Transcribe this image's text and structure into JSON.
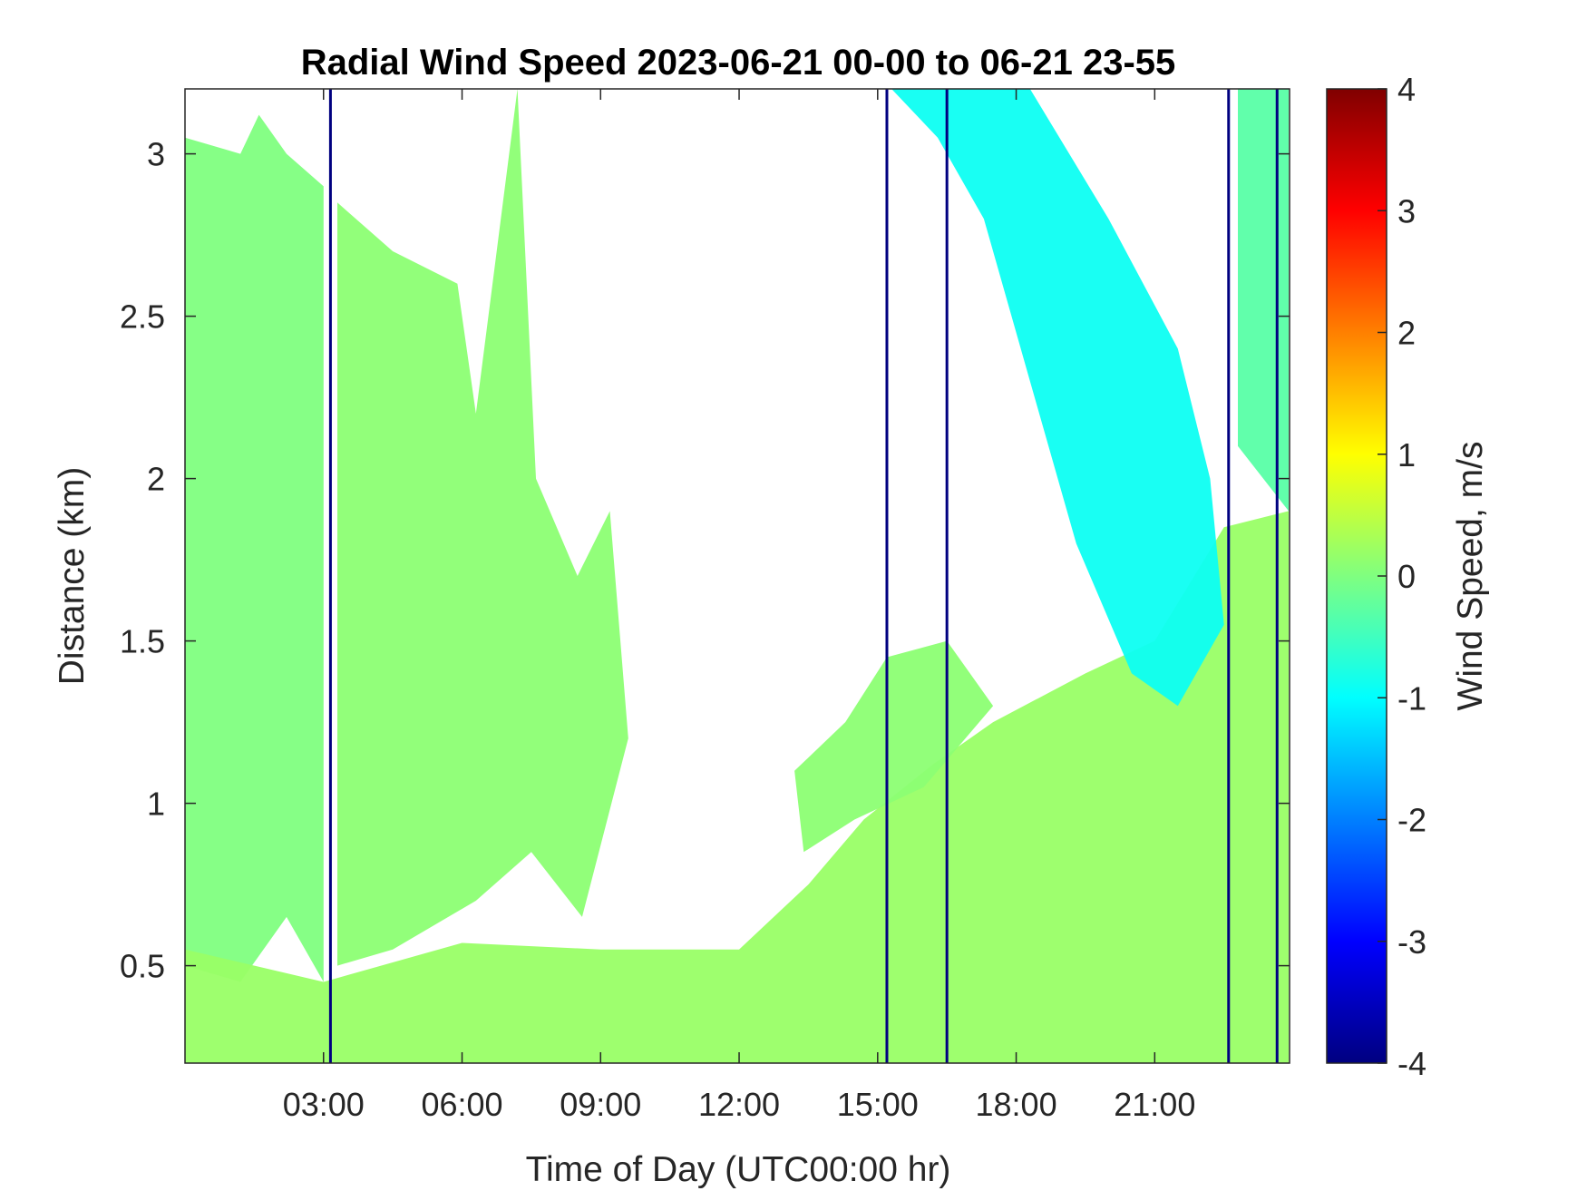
{
  "chart_data": {
    "type": "heatmap",
    "title": "Radial Wind Speed 2023-06-21 00-00 to 06-21 23-55",
    "xlabel": "Time of Day (UTC00:00 hr)",
    "ylabel": "Distance (km)",
    "colorbar_label": "Wind Speed, m/s",
    "colormap": "jet",
    "x_range_hours": [
      0.0,
      23.92
    ],
    "x_ticks": [
      {
        "value": 3,
        "label": "03:00"
      },
      {
        "value": 6,
        "label": "06:00"
      },
      {
        "value": 9,
        "label": "09:00"
      },
      {
        "value": 12,
        "label": "12:00"
      },
      {
        "value": 15,
        "label": "15:00"
      },
      {
        "value": 18,
        "label": "18:00"
      },
      {
        "value": 21,
        "label": "21:00"
      }
    ],
    "ylim": [
      0.2,
      3.2
    ],
    "y_ticks": [
      {
        "value": 0.5,
        "label": "0.5"
      },
      {
        "value": 1,
        "label": "1"
      },
      {
        "value": 1.5,
        "label": "1.5"
      },
      {
        "value": 2,
        "label": "2"
      },
      {
        "value": 2.5,
        "label": "2.5"
      },
      {
        "value": 3,
        "label": "3"
      }
    ],
    "clim": [
      -4,
      4
    ],
    "colorbar_ticks": [
      {
        "value": 4,
        "label": "4"
      },
      {
        "value": 3,
        "label": "3"
      },
      {
        "value": 2,
        "label": "2"
      },
      {
        "value": 1,
        "label": "1"
      },
      {
        "value": 0,
        "label": "0"
      },
      {
        "value": -1,
        "label": "-1"
      },
      {
        "value": -2,
        "label": "-2"
      },
      {
        "value": -3,
        "label": "-3"
      },
      {
        "value": -4,
        "label": "-4"
      }
    ],
    "regions": [
      {
        "id": "night-layer",
        "value": 0.0,
        "points": [
          [
            0,
            3.05
          ],
          [
            1.2,
            3.0
          ],
          [
            1.6,
            3.12
          ],
          [
            2.2,
            3.0
          ],
          [
            3.0,
            2.9
          ],
          [
            3.0,
            0.45
          ],
          [
            2.2,
            0.65
          ],
          [
            1.2,
            0.45
          ],
          [
            0,
            0.5
          ]
        ]
      },
      {
        "id": "morning-residual",
        "value": 0.1,
        "points": [
          [
            3.3,
            2.85
          ],
          [
            4.5,
            2.7
          ],
          [
            5.9,
            2.6
          ],
          [
            6.3,
            2.2
          ],
          [
            7.2,
            3.2
          ],
          [
            7.6,
            2.0
          ],
          [
            8.5,
            1.7
          ],
          [
            9.2,
            1.9
          ],
          [
            9.6,
            1.2
          ],
          [
            8.6,
            0.65
          ],
          [
            7.5,
            0.85
          ],
          [
            6.3,
            0.7
          ],
          [
            4.5,
            0.55
          ],
          [
            3.3,
            0.5
          ]
        ]
      },
      {
        "id": "surface-layer",
        "value": 0.2,
        "points": [
          [
            0,
            0.2
          ],
          [
            0,
            0.55
          ],
          [
            3.0,
            0.45
          ],
          [
            6.0,
            0.57
          ],
          [
            9.0,
            0.55
          ],
          [
            12.0,
            0.55
          ],
          [
            13.5,
            0.75
          ],
          [
            14.7,
            0.95
          ],
          [
            16.2,
            1.12
          ],
          [
            17.5,
            1.25
          ],
          [
            19.5,
            1.4
          ],
          [
            21.0,
            1.5
          ],
          [
            22.5,
            1.85
          ],
          [
            23.9,
            1.9
          ],
          [
            23.9,
            0.2
          ]
        ]
      },
      {
        "id": "midday-layer",
        "value": 0.1,
        "points": [
          [
            13.2,
            1.1
          ],
          [
            14.3,
            1.25
          ],
          [
            15.2,
            1.45
          ],
          [
            16.5,
            1.5
          ],
          [
            17.5,
            1.3
          ],
          [
            16.0,
            1.05
          ],
          [
            14.5,
            0.95
          ],
          [
            13.4,
            0.85
          ]
        ]
      },
      {
        "id": "afternoon-band",
        "value": -0.9,
        "points": [
          [
            15.3,
            3.2
          ],
          [
            18.3,
            3.2
          ],
          [
            20.0,
            2.8
          ],
          [
            21.5,
            2.4
          ],
          [
            22.2,
            2.0
          ],
          [
            22.5,
            1.55
          ],
          [
            21.5,
            1.3
          ],
          [
            20.5,
            1.4
          ],
          [
            19.3,
            1.8
          ],
          [
            18.3,
            2.3
          ],
          [
            17.3,
            2.8
          ],
          [
            16.3,
            3.05
          ]
        ]
      },
      {
        "id": "late-evening",
        "value": -0.3,
        "points": [
          [
            22.8,
            3.2
          ],
          [
            23.9,
            3.2
          ],
          [
            23.9,
            1.9
          ],
          [
            22.8,
            2.1
          ]
        ]
      }
    ],
    "streaks": [
      {
        "x": 3.15,
        "value": -4.0
      },
      {
        "x": 15.2,
        "value": -4.0
      },
      {
        "x": 16.5,
        "value": -4.0
      },
      {
        "x": 22.6,
        "value": -4.0
      },
      {
        "x": 23.65,
        "value": -4.0
      }
    ]
  }
}
